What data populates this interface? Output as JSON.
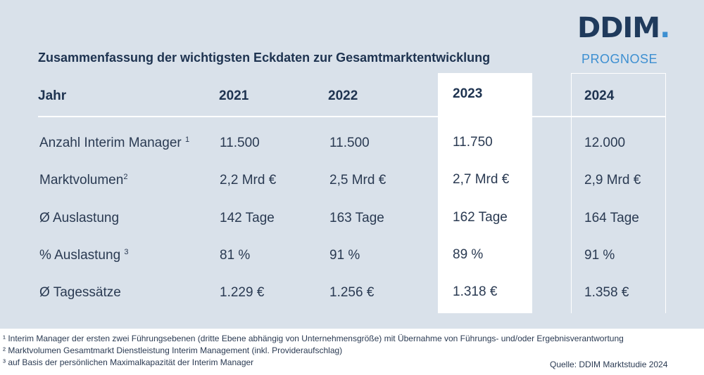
{
  "logo": {
    "text": "DDIM",
    "dot": "."
  },
  "title": "Zusammenfassung der wichtigsten Eckdaten zur Gesamtmarktentwicklung",
  "prognose_label": "PROGNOSE",
  "table": {
    "header": [
      "Jahr",
      "2021",
      "2022",
      "2023",
      "2024"
    ],
    "rows": [
      {
        "label": "Anzahl Interim Manager",
        "sup": "1",
        "values": [
          "11.500",
          "11.500",
          "11.750",
          "12.000"
        ]
      },
      {
        "label": "Marktvolumen",
        "sup": "2",
        "values": [
          "2,2 Mrd €",
          "2,5 Mrd €",
          "2,7 Mrd €",
          "2,9 Mrd €"
        ]
      },
      {
        "label": "Ø Auslastung",
        "sup": "",
        "values": [
          "142 Tage",
          "163 Tage",
          "162 Tage",
          "164 Tage"
        ]
      },
      {
        "label": "% Auslastung",
        "sup": "3",
        "values": [
          "81 %",
          "91 %",
          "89 %",
          "91 %"
        ]
      },
      {
        "label": "Ø Tagessätze",
        "sup": "",
        "values": [
          "1.229 €",
          "1.256 €",
          "1.318 €",
          "1.358 €"
        ]
      }
    ]
  },
  "footnotes": [
    "¹ Interim Manager der ersten zwei Führungsebenen (dritte Ebene abhängig von Unternehmensgröße) mit Übernahme von Führungs- und/oder Ergebnisverantwortung",
    "² Marktvolumen Gesamtmarkt Dienstleistung Interim Management (inkl. Provideraufschlag)",
    "³ auf Basis der persönlichen Maximalkapazität der Interim Manager"
  ],
  "source": "Quelle: DDIM Marktstudie 2024",
  "colors": {
    "panel": "#d9e1ea",
    "navy": "#1f3a5c",
    "accent": "#3d8fd1"
  }
}
